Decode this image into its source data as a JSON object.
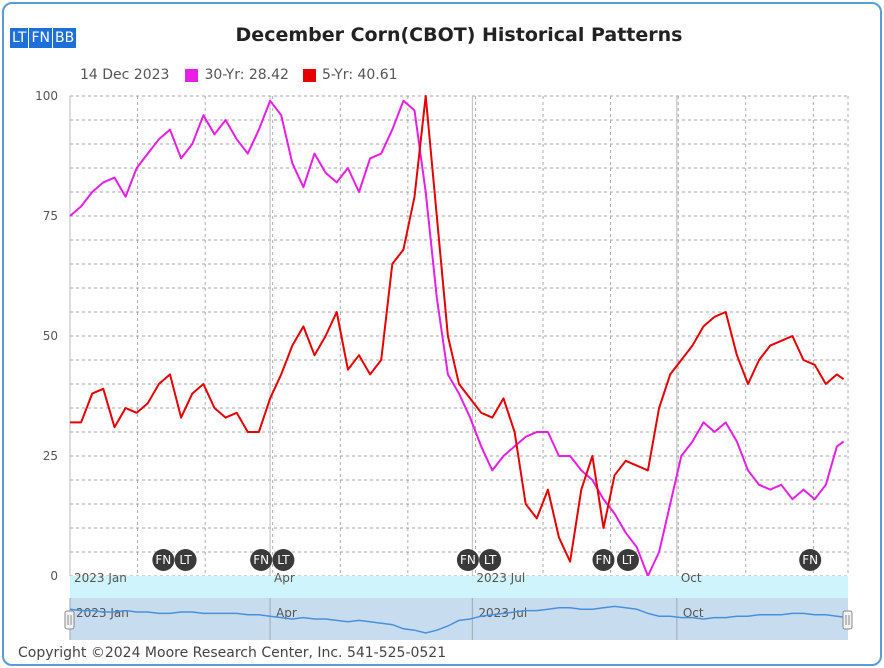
{
  "title": "December Corn(CBOT) Historical Patterns",
  "modebar": [
    "LT",
    "FN",
    "BB"
  ],
  "legend": {
    "date": "14 Dec 2023",
    "series1": "30-Yr: 28.42",
    "series2": "5-Yr: 40.61"
  },
  "footer": "Copyright ©2024 Moore Research Center, Inc. 541-525-0521",
  "colors": {
    "series1": "#e61ee6",
    "series2": "#e60000",
    "navigator": "#4a90d9"
  },
  "chart_data": {
    "type": "line",
    "ylim": [
      0,
      100
    ],
    "yticks": [
      0,
      25,
      50,
      75,
      100
    ],
    "xlim": [
      0,
      350
    ],
    "month_ticks": [
      {
        "x": 0,
        "label": "2023 Jan"
      },
      {
        "x": 90,
        "label": "Apr"
      },
      {
        "x": 181,
        "label": "2023 Jul"
      },
      {
        "x": 273,
        "label": "Oct"
      }
    ],
    "nav_month_ticks": [
      {
        "x": 0,
        "label": "2023 Jan"
      },
      {
        "x": 90,
        "label": "Apr"
      },
      {
        "x": 181,
        "label": "2023 Jul"
      },
      {
        "x": 273,
        "label": "Oct"
      }
    ],
    "series": [
      {
        "name": "30-Yr",
        "x": [
          0,
          5,
          10,
          15,
          20,
          25,
          30,
          35,
          40,
          45,
          50,
          55,
          60,
          65,
          70,
          75,
          80,
          85,
          90,
          95,
          100,
          105,
          110,
          115,
          120,
          125,
          130,
          135,
          140,
          145,
          150,
          155,
          160,
          165,
          170,
          175,
          180,
          185,
          190,
          195,
          200,
          205,
          210,
          215,
          220,
          225,
          230,
          235,
          240,
          245,
          250,
          255,
          260,
          265,
          270,
          275,
          280,
          285,
          290,
          295,
          300,
          305,
          310,
          315,
          320,
          325,
          330,
          335,
          340,
          345,
          348
        ],
        "values": [
          75,
          77,
          80,
          82,
          83,
          79,
          85,
          88,
          91,
          93,
          87,
          90,
          96,
          92,
          95,
          91,
          88,
          93,
          99,
          96,
          86,
          81,
          88,
          84,
          82,
          85,
          80,
          87,
          88,
          93,
          99,
          97,
          80,
          58,
          42,
          38,
          33,
          27,
          22,
          25,
          27,
          29,
          30,
          30,
          25,
          25,
          22,
          20,
          16,
          13,
          9,
          6,
          0,
          5,
          15,
          25,
          28,
          32,
          30,
          32,
          28,
          22,
          19,
          18,
          19,
          16,
          18,
          16,
          19,
          27,
          28
        ]
      },
      {
        "name": "5-Yr",
        "x": [
          0,
          5,
          10,
          15,
          20,
          25,
          30,
          35,
          40,
          45,
          50,
          55,
          60,
          65,
          70,
          75,
          80,
          85,
          90,
          95,
          100,
          105,
          110,
          115,
          120,
          125,
          130,
          135,
          140,
          145,
          150,
          155,
          160,
          165,
          170,
          175,
          180,
          185,
          190,
          195,
          200,
          205,
          210,
          215,
          220,
          225,
          230,
          235,
          240,
          245,
          250,
          255,
          260,
          265,
          270,
          275,
          280,
          285,
          290,
          295,
          300,
          305,
          310,
          315,
          320,
          325,
          330,
          335,
          340,
          345,
          348
        ],
        "values": [
          32,
          32,
          38,
          39,
          31,
          35,
          34,
          36,
          40,
          42,
          33,
          38,
          40,
          35,
          33,
          34,
          30,
          30,
          37,
          42,
          48,
          52,
          46,
          50,
          55,
          43,
          46,
          42,
          45,
          65,
          68,
          79,
          100,
          75,
          50,
          40,
          37,
          34,
          33,
          37,
          30,
          15,
          12,
          18,
          8,
          3,
          18,
          25,
          10,
          21,
          24,
          23,
          22,
          35,
          42,
          45,
          48,
          52,
          54,
          55,
          46,
          40,
          45,
          48,
          49,
          50,
          45,
          44,
          40,
          42,
          41
        ]
      }
    ],
    "navigator_values": [
      52,
      51,
      51,
      50,
      50,
      51,
      50,
      50,
      49,
      49,
      50,
      50,
      49,
      49,
      49,
      49,
      48,
      48,
      47,
      46,
      45,
      46,
      45,
      45,
      44,
      43,
      44,
      43,
      42,
      41,
      38,
      37,
      35,
      37,
      40,
      44,
      45,
      47,
      48,
      49,
      50,
      51,
      51,
      52,
      53,
      53,
      52,
      52,
      53,
      54,
      53,
      52,
      49,
      47,
      47,
      46,
      46,
      45,
      46,
      46,
      47,
      47,
      48,
      48,
      48,
      49,
      49,
      48,
      48,
      47,
      46
    ],
    "markers": [
      {
        "x": 42,
        "label": "FN"
      },
      {
        "x": 52,
        "label": "LT"
      },
      {
        "x": 86,
        "label": "FN"
      },
      {
        "x": 96,
        "label": "LT"
      },
      {
        "x": 179,
        "label": "FN"
      },
      {
        "x": 189,
        "label": "LT"
      },
      {
        "x": 240,
        "label": "FN"
      },
      {
        "x": 251,
        "label": "LT"
      },
      {
        "x": 333,
        "label": "FN"
      }
    ]
  }
}
